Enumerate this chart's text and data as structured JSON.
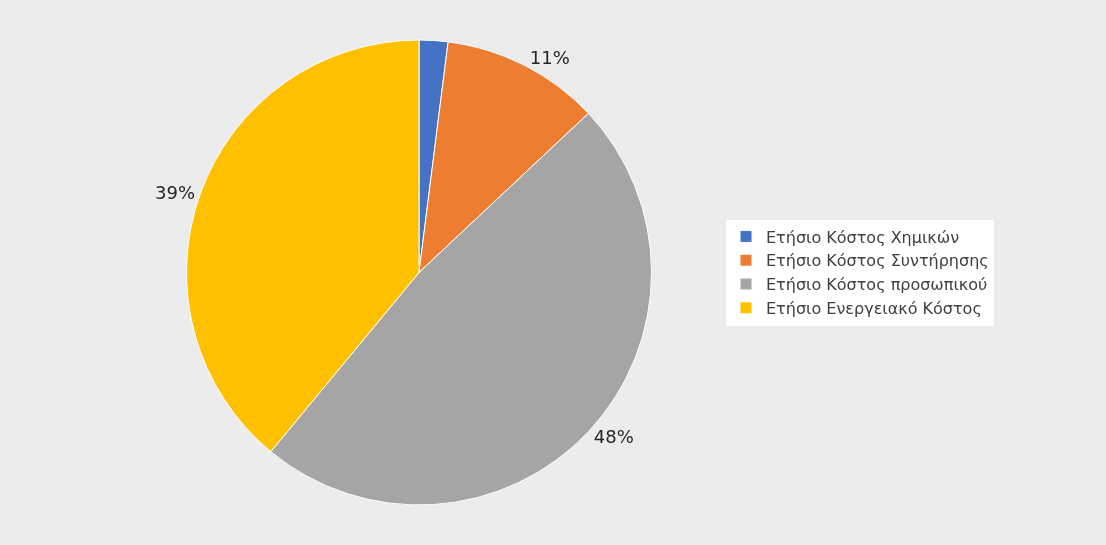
{
  "chart_data": {
    "type": "pie",
    "categories": [
      "Ετήσιο Κόστος Χημικών",
      "Ετήσιο Κόστος Συντήρησης",
      "Ετήσιο Κόστος προσωπικού",
      "Ετήσιο Ενεργειακό Κόστος"
    ],
    "values": [
      2,
      11,
      48,
      39
    ],
    "value_labels": [
      null,
      "11%",
      "48%",
      "39%"
    ],
    "colors": [
      "#4472c4",
      "#ed7d31",
      "#a5a5a5",
      "#ffc000"
    ],
    "legend": "right"
  }
}
